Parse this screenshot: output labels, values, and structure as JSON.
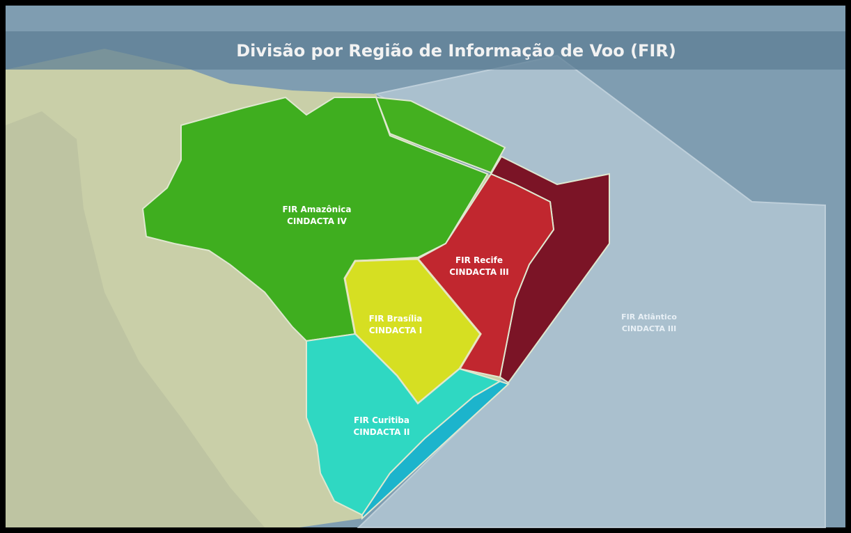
{
  "header": {
    "title": "Divisão por Região de Informação de Voo (FIR)"
  },
  "regions": [
    {
      "name": "FIR Amazônica",
      "unit": "CINDACTA IV"
    },
    {
      "name": "FIR Recife",
      "unit": "CINDACTA III"
    },
    {
      "name": "FIR Brasília",
      "unit": "CINDACTA I"
    },
    {
      "name": "FIR Curitiba",
      "unit": "CINDACTA II"
    },
    {
      "name": "FIR Atlântico",
      "unit": "CINDACTA III"
    }
  ]
}
